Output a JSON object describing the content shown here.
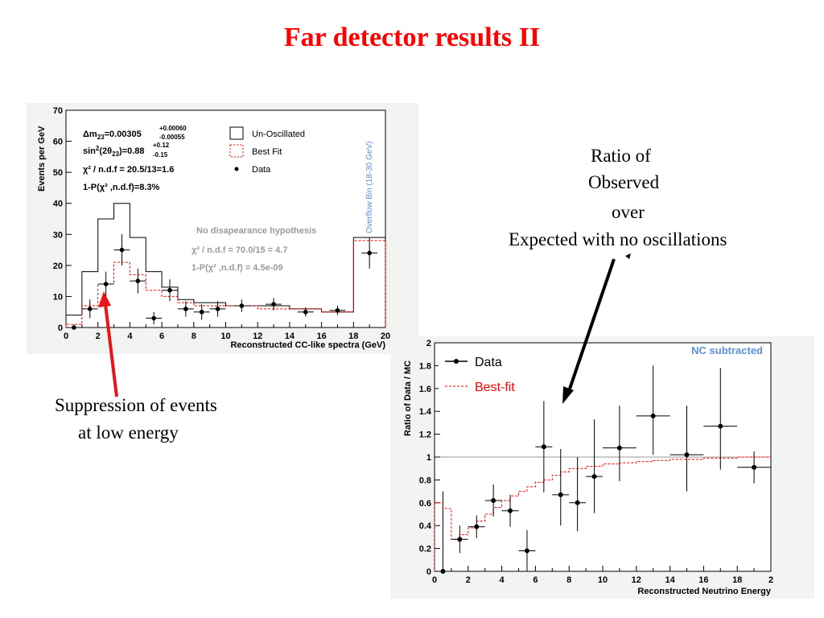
{
  "slide": {
    "title": "Far detector results II",
    "note_ratio": [
      "Ratio of",
      "Observed",
      "over",
      "Expected with no oscillations"
    ],
    "note_suppression": [
      "Suppression of events",
      "at low energy"
    ]
  },
  "colors": {
    "title": "#ff0000",
    "bestfit": "#ff0000",
    "arrow_red": "#e8141a",
    "nc_label": "#5b8fd6"
  },
  "chart_data": [
    {
      "type": "histogram",
      "xlabel": "Reconstructed CC-like spectra (GeV)",
      "ylabel": "Events per GeV",
      "xlim": [
        0,
        20
      ],
      "ylim": [
        0,
        70
      ],
      "xticks": [
        "0",
        "2",
        "4",
        "6",
        "8",
        "10",
        "12",
        "14",
        "16",
        "18",
        "20"
      ],
      "yticks": [
        "0",
        "10",
        "20",
        "30",
        "40",
        "50",
        "60",
        "70"
      ],
      "overflow_label": "Overflow Bin (18-30 GeV)",
      "fit_text": {
        "dm_main": "Δm",
        "dm_sub": "23",
        "dm_val": "=0.00305",
        "dm_up": "+0.00060",
        "dm_down": "-0.00055",
        "sin_main": "sin",
        "sin_sup": "2",
        "sin_mid": "(2θ",
        "sin_sub": "23",
        "sin_val": ")=0.88",
        "sin_up": "+0.12",
        "sin_down": "-0.15",
        "chi2": "χ² / n.d.f = 20.5/13=1.6",
        "prob": "1-P(χ² ,n.d.f)=8.3%"
      },
      "nodis_text": {
        "heading": "No disapearance hypothesis",
        "chi2": "χ² / n.d.f = 70.0/15 = 4.7",
        "prob": "1-P(χ² ,n.d.f) = 4.5e-09"
      },
      "legend": [
        "Un-Oscillated",
        "Best Fit",
        "Data"
      ],
      "legend_position": "top-right",
      "series": [
        {
          "name": "Un-Oscillated",
          "bin_edges": [
            0,
            1,
            2,
            3,
            4,
            5,
            6,
            7,
            8,
            9,
            10,
            12,
            14,
            16,
            18,
            20
          ],
          "values": [
            4,
            18,
            35,
            40,
            29,
            18,
            13,
            9,
            8,
            8,
            7,
            7,
            6,
            5,
            29
          ]
        },
        {
          "name": "Best Fit",
          "bin_edges": [
            0,
            1,
            2,
            3,
            4,
            5,
            6,
            7,
            8,
            9,
            10,
            12,
            14,
            16,
            18,
            20
          ],
          "values": [
            1,
            7,
            14,
            21,
            17,
            12,
            10,
            8,
            7,
            7,
            7,
            6,
            6,
            5,
            28
          ]
        },
        {
          "name": "Data",
          "points": [
            {
              "x": 0.5,
              "y": 0,
              "err": 1
            },
            {
              "x": 1.5,
              "y": 6,
              "err": 3
            },
            {
              "x": 2.5,
              "y": 14,
              "err": 4
            },
            {
              "x": 3.5,
              "y": 25,
              "err": 5
            },
            {
              "x": 4.5,
              "y": 15,
              "err": 4
            },
            {
              "x": 5.5,
              "y": 3,
              "err": 2
            },
            {
              "x": 6.5,
              "y": 12,
              "err": 3.5
            },
            {
              "x": 7.5,
              "y": 6,
              "err": 2.5
            },
            {
              "x": 8.5,
              "y": 5,
              "err": 2.5
            },
            {
              "x": 9.5,
              "y": 6,
              "err": 2.5
            },
            {
              "x": 11,
              "y": 7,
              "err": 2
            },
            {
              "x": 13,
              "y": 7.5,
              "err": 2
            },
            {
              "x": 15,
              "y": 5,
              "err": 1.5
            },
            {
              "x": 17,
              "y": 5.5,
              "err": 1.5
            },
            {
              "x": 19,
              "y": 24,
              "err": 5
            }
          ]
        }
      ]
    },
    {
      "type": "histogram",
      "xlabel": "Reconstructed Neutrino Energy",
      "ylabel": "Ratio of Data / MC",
      "xlim": [
        0,
        20
      ],
      "ylim": [
        0,
        2
      ],
      "xticks": [
        "0",
        "2",
        "4",
        "6",
        "8",
        "10",
        "12",
        "14",
        "16",
        "18",
        "2"
      ],
      "yticks": [
        "0",
        "0.2",
        "0.4",
        "0.6",
        "0.8",
        "1",
        "1.2",
        "1.4",
        "1.6",
        "1.8",
        "2"
      ],
      "reference_line": 1,
      "corner_label": "NC subtracted",
      "legend": [
        "Data",
        "Best-fit"
      ],
      "legend_position": "top-left",
      "series": [
        {
          "name": "Best-fit",
          "bin_edges": [
            0,
            0.5,
            1,
            1.5,
            2,
            2.5,
            3,
            3.5,
            4,
            4.5,
            5,
            5.5,
            6,
            6.5,
            7,
            7.5,
            8,
            9,
            10,
            11,
            12,
            13,
            14,
            16,
            18,
            20
          ],
          "values": [
            0.6,
            0.55,
            0.28,
            0.32,
            0.38,
            0.44,
            0.5,
            0.56,
            0.62,
            0.66,
            0.7,
            0.74,
            0.78,
            0.8,
            0.84,
            0.87,
            0.9,
            0.92,
            0.94,
            0.95,
            0.96,
            0.97,
            0.98,
            0.99,
            1.0
          ]
        },
        {
          "name": "Data",
          "points": [
            {
              "x": 0.5,
              "y": 0,
              "elo": 0,
              "ehi": 0.7,
              "xerr": 0.5
            },
            {
              "x": 1.5,
              "y": 0.28,
              "elo": 0.12,
              "ehi": 0.12,
              "xerr": 0.5
            },
            {
              "x": 2.5,
              "y": 0.39,
              "elo": 0.1,
              "ehi": 0.1,
              "xerr": 0.5
            },
            {
              "x": 3.5,
              "y": 0.62,
              "elo": 0.14,
              "ehi": 0.14,
              "xerr": 0.5
            },
            {
              "x": 4.5,
              "y": 0.53,
              "elo": 0.14,
              "ehi": 0.14,
              "xerr": 0.5
            },
            {
              "x": 5.5,
              "y": 0.18,
              "elo": 0.18,
              "ehi": 0.18,
              "xerr": 0.5
            },
            {
              "x": 6.5,
              "y": 1.09,
              "elo": 0.4,
              "ehi": 0.4,
              "xerr": 0.5
            },
            {
              "x": 7.5,
              "y": 0.67,
              "elo": 0.27,
              "ehi": 0.4,
              "xerr": 0.5
            },
            {
              "x": 8.5,
              "y": 0.6,
              "elo": 0.25,
              "ehi": 0.4,
              "xerr": 0.5
            },
            {
              "x": 9.5,
              "y": 0.83,
              "elo": 0.32,
              "ehi": 0.5,
              "xerr": 0.5
            },
            {
              "x": 11,
              "y": 1.08,
              "elo": 0.29,
              "ehi": 0.37,
              "xerr": 1
            },
            {
              "x": 13,
              "y": 1.36,
              "elo": 0.34,
              "ehi": 0.44,
              "xerr": 1
            },
            {
              "x": 15,
              "y": 1.02,
              "elo": 0.32,
              "ehi": 0.43,
              "xerr": 1
            },
            {
              "x": 17,
              "y": 1.27,
              "elo": 0.38,
              "ehi": 0.51,
              "xerr": 1
            },
            {
              "x": 19,
              "y": 0.91,
              "elo": 0.14,
              "ehi": 0.14,
              "xerr": 1
            }
          ]
        }
      ]
    }
  ]
}
